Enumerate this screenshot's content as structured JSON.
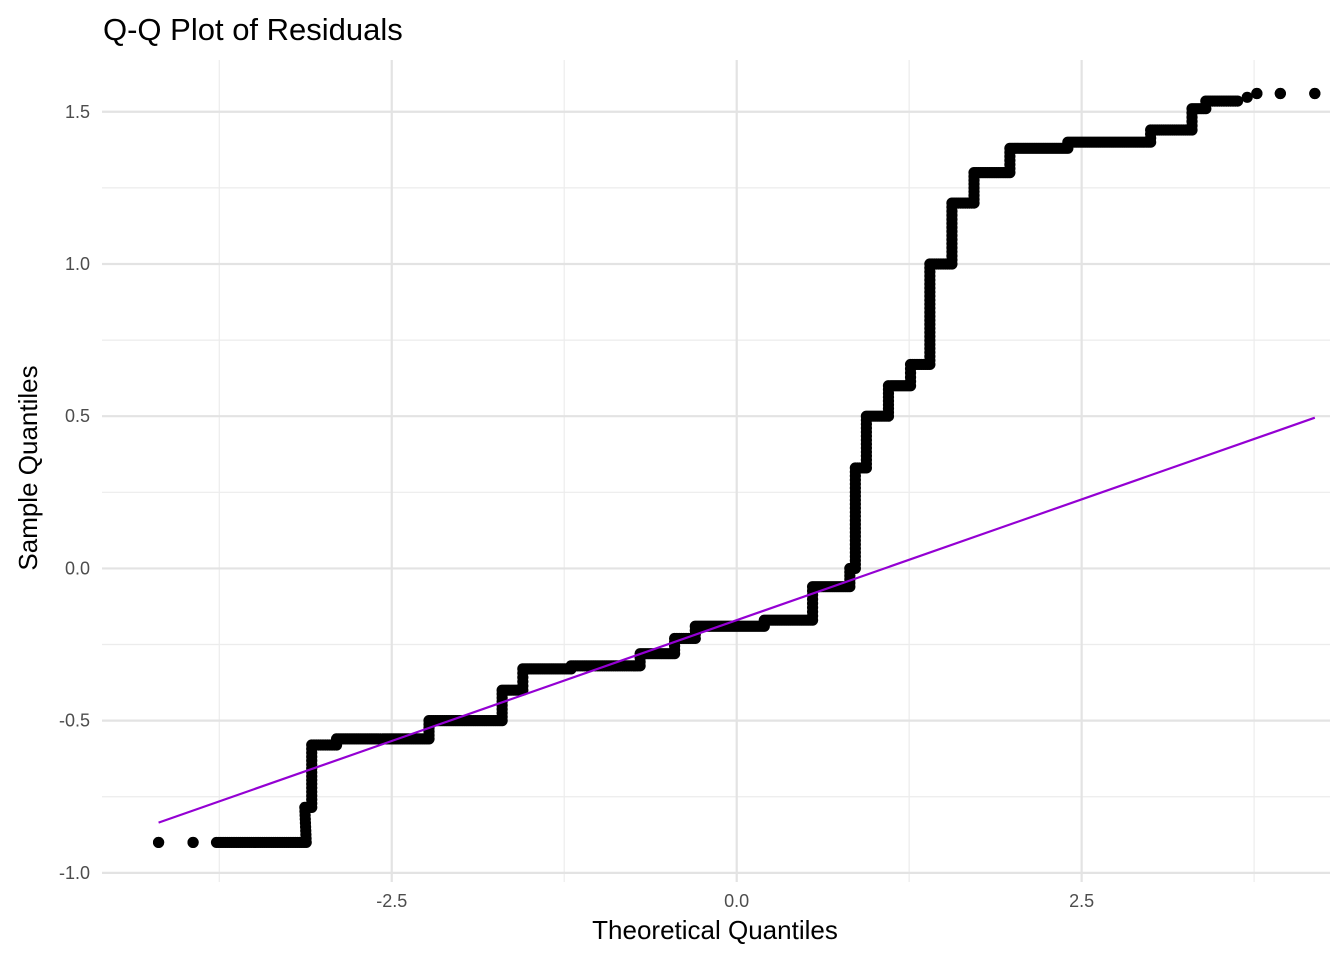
{
  "chart_data": {
    "type": "scatter",
    "title": "Q-Q Plot of Residuals",
    "xlabel": "Theoretical Quantiles",
    "ylabel": "Sample Quantiles",
    "xlim": [
      -4.6,
      4.3
    ],
    "ylim": [
      -1.03,
      1.67
    ],
    "x_ticks": [
      -2.5,
      0.0,
      2.5
    ],
    "x_tick_labels": [
      "-2.5",
      "0.0",
      "2.5"
    ],
    "y_ticks": [
      -1.0,
      -0.5,
      0.0,
      0.5,
      1.0,
      1.5
    ],
    "y_tick_labels": [
      "-1.0",
      "-0.5",
      "0.0",
      "0.5",
      "1.0",
      "1.5"
    ],
    "grid": true,
    "point_color": "#000000",
    "line_color": "#9400D3",
    "reference_line": {
      "x": [
        -4.19,
        4.19
      ],
      "y": [
        -0.835,
        0.495
      ]
    },
    "sample_quantile_steps": [
      {
        "x_from": -4.19,
        "x_to": -4.19,
        "y": -0.9
      },
      {
        "x_from": -3.94,
        "x_to": -3.94,
        "y": -0.9
      },
      {
        "x_from": -3.77,
        "x_to": -3.12,
        "y": -0.9
      },
      {
        "x_from": -3.13,
        "x_to": -3.08,
        "y": -0.785
      },
      {
        "x_from": -3.08,
        "x_to": -2.9,
        "y": -0.58
      },
      {
        "x_from": -2.9,
        "x_to": -2.23,
        "y": -0.56
      },
      {
        "x_from": -2.23,
        "x_to": -1.7,
        "y": -0.5
      },
      {
        "x_from": -1.7,
        "x_to": -1.55,
        "y": -0.4
      },
      {
        "x_from": -1.55,
        "x_to": -1.2,
        "y": -0.33
      },
      {
        "x_from": -1.2,
        "x_to": -0.7,
        "y": -0.32
      },
      {
        "x_from": -0.7,
        "x_to": -0.45,
        "y": -0.28
      },
      {
        "x_from": -0.45,
        "x_to": -0.3,
        "y": -0.23
      },
      {
        "x_from": -0.3,
        "x_to": 0.2,
        "y": -0.19
      },
      {
        "x_from": 0.2,
        "x_to": 0.55,
        "y": -0.17
      },
      {
        "x_from": 0.55,
        "x_to": 0.82,
        "y": -0.06
      },
      {
        "x_from": 0.82,
        "x_to": 0.86,
        "y": 0.0
      },
      {
        "x_from": 0.86,
        "x_to": 0.94,
        "y": 0.33
      },
      {
        "x_from": 0.94,
        "x_to": 1.1,
        "y": 0.5
      },
      {
        "x_from": 1.1,
        "x_to": 1.26,
        "y": 0.6
      },
      {
        "x_from": 1.26,
        "x_to": 1.4,
        "y": 0.67
      },
      {
        "x_from": 1.4,
        "x_to": 1.56,
        "y": 1.0
      },
      {
        "x_from": 1.56,
        "x_to": 1.72,
        "y": 1.2
      },
      {
        "x_from": 1.72,
        "x_to": 1.98,
        "y": 1.3
      },
      {
        "x_from": 1.98,
        "x_to": 2.4,
        "y": 1.38
      },
      {
        "x_from": 2.4,
        "x_to": 3.0,
        "y": 1.4
      },
      {
        "x_from": 3.0,
        "x_to": 3.3,
        "y": 1.44
      },
      {
        "x_from": 3.3,
        "x_to": 3.4,
        "y": 1.51
      },
      {
        "x_from": 3.4,
        "x_to": 3.63,
        "y": 1.535
      },
      {
        "x_from": 3.77,
        "x_to": 3.77,
        "y": 1.56
      },
      {
        "x_from": 3.94,
        "x_to": 3.94,
        "y": 1.56
      },
      {
        "x_from": 4.19,
        "x_to": 4.19,
        "y": 1.56
      }
    ]
  }
}
